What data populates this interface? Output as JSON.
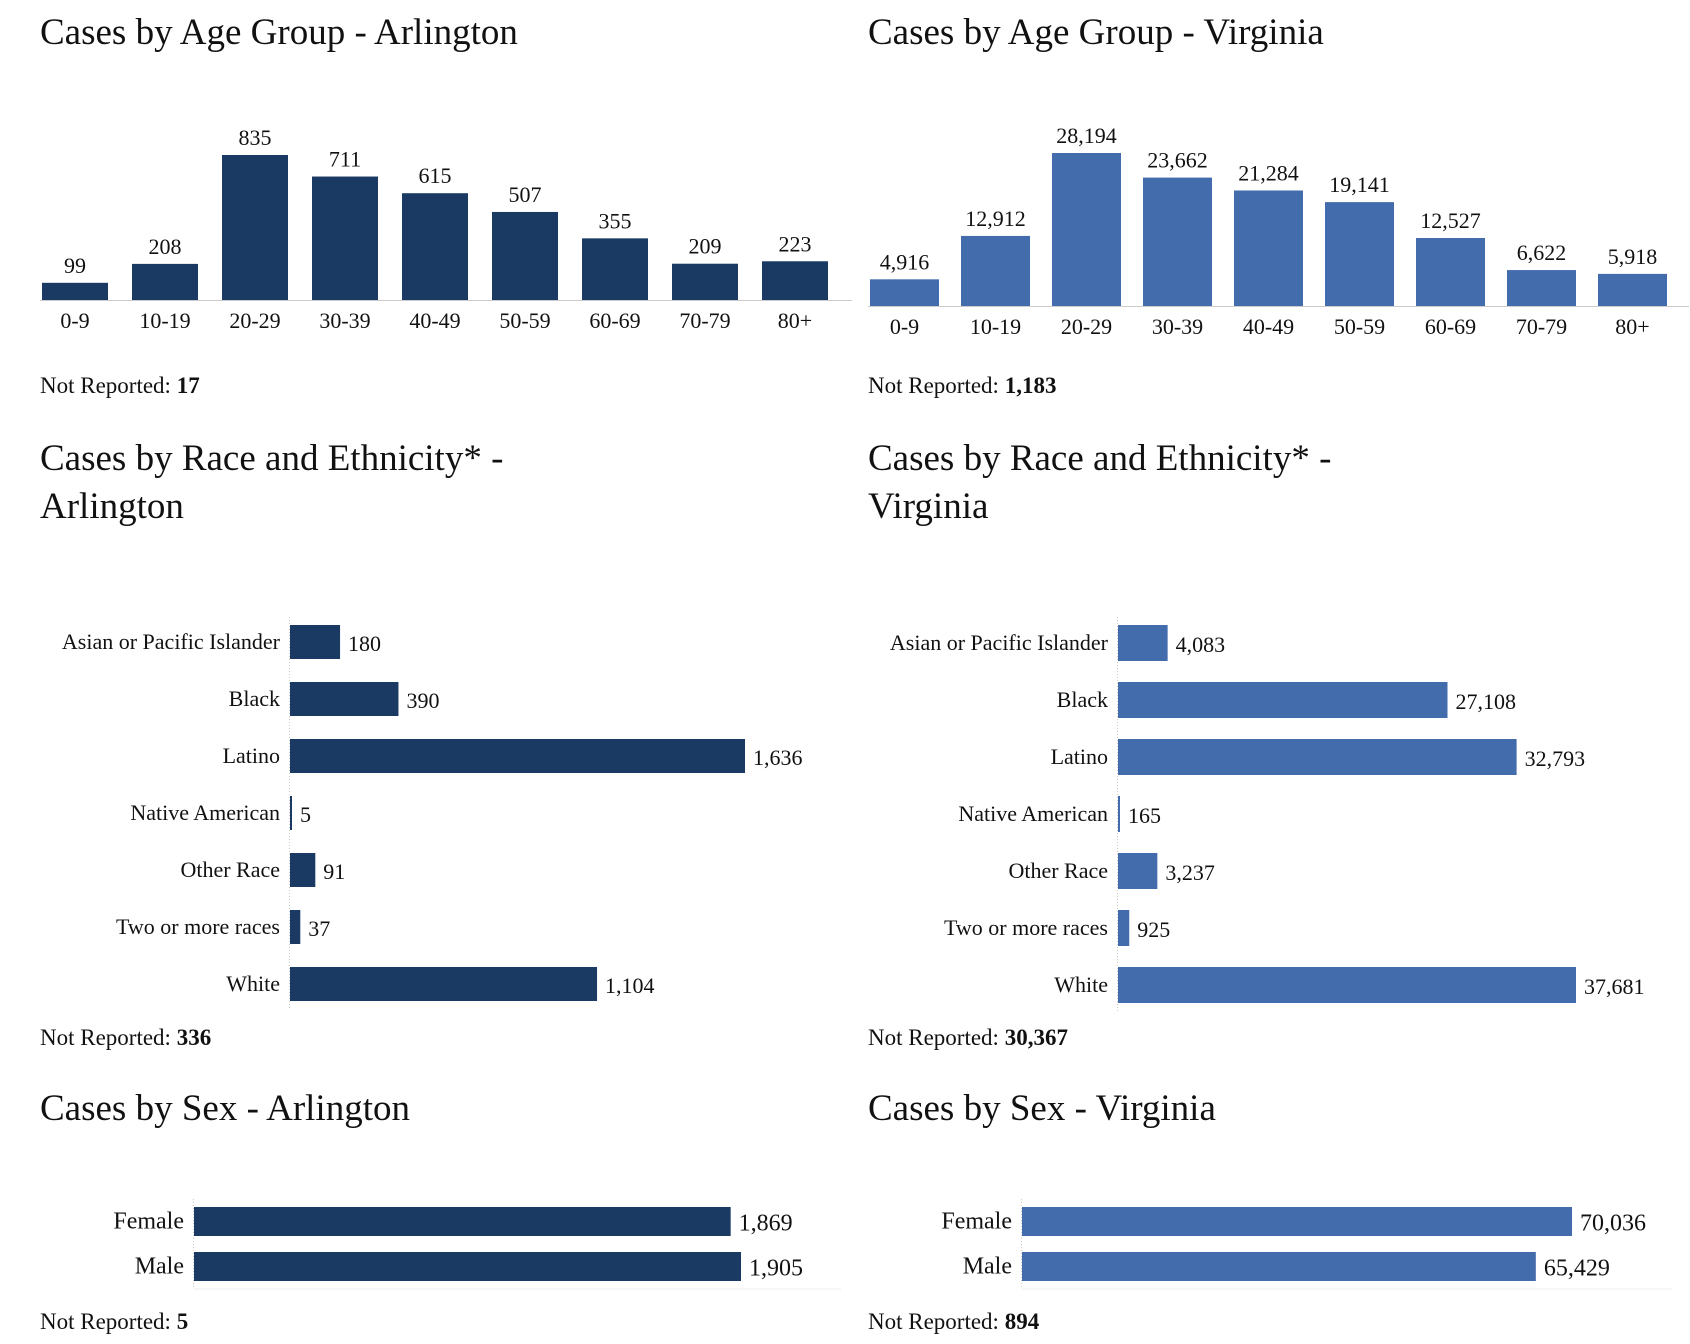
{
  "colors": {
    "arlington": "#1a3a63",
    "virginia": "#436cac",
    "axis": "#cccccc"
  },
  "not_reported_label": "Not Reported:",
  "panels": {
    "age_arl": {
      "title": "Cases by Age Group - Arlington",
      "not_reported": "17"
    },
    "age_va": {
      "title": "Cases by Age Group - Virginia",
      "not_reported": "1,183"
    },
    "race_arl": {
      "title_line1": "Cases by Race and Ethnicity* -",
      "title_line2": "Arlington",
      "not_reported": "336"
    },
    "race_va": {
      "title_line1": "Cases by Race and Ethnicity* -",
      "title_line2": "Virginia",
      "not_reported": "30,367"
    },
    "sex_arl": {
      "title": "Cases by Sex - Arlington",
      "not_reported": "5"
    },
    "sex_va": {
      "title": "Cases by Sex - Virginia",
      "not_reported": "894"
    }
  },
  "chart_data": [
    {
      "id": "age_arl",
      "type": "bar",
      "orientation": "vertical",
      "color": "arlington",
      "categories": [
        "0-9",
        "10-19",
        "20-29",
        "30-39",
        "40-49",
        "50-59",
        "60-69",
        "70-79",
        "80+"
      ],
      "values": [
        99,
        208,
        835,
        711,
        615,
        507,
        355,
        209,
        223
      ],
      "labels": [
        "99",
        "208",
        "835",
        "711",
        "615",
        "507",
        "355",
        "209",
        "223"
      ]
    },
    {
      "id": "age_va",
      "type": "bar",
      "orientation": "vertical",
      "color": "virginia",
      "categories": [
        "0-9",
        "10-19",
        "20-29",
        "30-39",
        "40-49",
        "50-59",
        "60-69",
        "70-79",
        "80+"
      ],
      "values": [
        4916,
        12912,
        28194,
        23662,
        21284,
        19141,
        12527,
        6622,
        5918
      ],
      "labels": [
        "4,916",
        "12,912",
        "28,194",
        "23,662",
        "21,284",
        "19,141",
        "12,527",
        "6,622",
        "5,918"
      ]
    },
    {
      "id": "race_arl",
      "type": "bar",
      "orientation": "horizontal",
      "color": "arlington",
      "categories": [
        "Asian or Pacific Islander",
        "Black",
        "Latino",
        "Native American",
        "Other Race",
        "Two or more races",
        "White"
      ],
      "values": [
        180,
        390,
        1636,
        5,
        91,
        37,
        1104
      ],
      "labels": [
        "180",
        "390",
        "1,636",
        "5",
        "91",
        "37",
        "1,104"
      ]
    },
    {
      "id": "race_va",
      "type": "bar",
      "orientation": "horizontal",
      "color": "virginia",
      "categories": [
        "Asian or Pacific Islander",
        "Black",
        "Latino",
        "Native American",
        "Other Race",
        "Two or more races",
        "White"
      ],
      "values": [
        4083,
        27108,
        32793,
        165,
        3237,
        925,
        37681
      ],
      "labels": [
        "4,083",
        "27,108",
        "32,793",
        "165",
        "3,237",
        "925",
        "37,681"
      ]
    },
    {
      "id": "sex_arl",
      "type": "bar",
      "orientation": "horizontal",
      "color": "arlington",
      "categories": [
        "Female",
        "Male"
      ],
      "values": [
        1869,
        1905
      ],
      "labels": [
        "1,869",
        "1,905"
      ]
    },
    {
      "id": "sex_va",
      "type": "bar",
      "orientation": "horizontal",
      "color": "virginia",
      "categories": [
        "Female",
        "Male"
      ],
      "values": [
        70036,
        65429
      ],
      "labels": [
        "70,036",
        "65,429"
      ]
    }
  ]
}
